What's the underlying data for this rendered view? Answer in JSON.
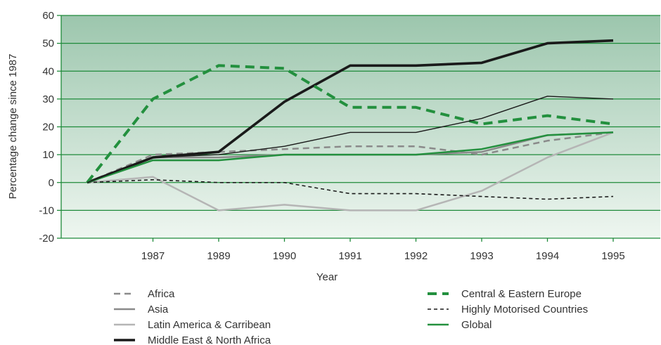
{
  "chart_data": {
    "type": "line",
    "title": "",
    "xlabel": "Year",
    "ylabel": "Percentage change since 1987",
    "x_tick_labels": [
      "1987",
      "1989",
      "1990",
      "1991",
      "1992",
      "1993",
      "1994",
      "1995"
    ],
    "ylim": [
      -20,
      60
    ],
    "y_ticks": [
      60,
      50,
      40,
      30,
      20,
      10,
      0,
      -10,
      -20
    ],
    "y_tick_labels": [
      "60",
      "50",
      "40",
      "30",
      "20",
      "10",
      "0",
      "-10",
      "-20"
    ],
    "grid": true,
    "legend_position": "bottom",
    "colors": {
      "plot_bg_top": "#9cc6ad",
      "plot_bg_bottom": "#eef6f0",
      "gridline": "#1e8a3a",
      "green": "#23903e",
      "black": "#1a1a1a",
      "dark_gray": "#8a8a8a",
      "light_gray": "#b5b5b5"
    },
    "series": [
      {
        "name": "Africa",
        "style": "dashed",
        "color": "#8a8a8a",
        "values": [
          0,
          10,
          11,
          12,
          13,
          13,
          10,
          15,
          18
        ]
      },
      {
        "name": "Asia",
        "style": "solid",
        "color": "#8a8a8a",
        "values": [
          0,
          9,
          9,
          10,
          10,
          10,
          11,
          17,
          18
        ]
      },
      {
        "name": "Latin America & Carribean",
        "style": "solid",
        "color": "#b5b5b5",
        "values": [
          0,
          2,
          -10,
          -8,
          -10,
          -10,
          -3,
          9,
          18
        ]
      },
      {
        "name": "Middle East & North Africa",
        "style": "thick",
        "color": "#1a1a1a",
        "values": [
          0,
          9,
          11,
          29,
          42,
          42,
          43,
          50,
          51
        ]
      },
      {
        "name": "Central & Eastern Europe",
        "style": "thick-dashed",
        "color": "#23903e",
        "values": [
          0,
          30,
          42,
          41,
          27,
          27,
          21,
          24,
          21
        ]
      },
      {
        "name": "Highly Motorised Countries",
        "style": "dotted",
        "color": "#1a1a1a",
        "values": [
          0,
          1,
          0,
          0,
          -4,
          -4,
          -5,
          -6,
          -5
        ]
      },
      {
        "name": "Global",
        "style": "solid",
        "color": "#23903e",
        "values": [
          0,
          8,
          8,
          10,
          10,
          10,
          12,
          17,
          18
        ]
      },
      {
        "name": "",
        "style": "thin",
        "color": "#1a1a1a",
        "values": [
          0,
          9,
          10,
          13,
          18,
          18,
          23,
          31,
          30
        ]
      }
    ]
  }
}
